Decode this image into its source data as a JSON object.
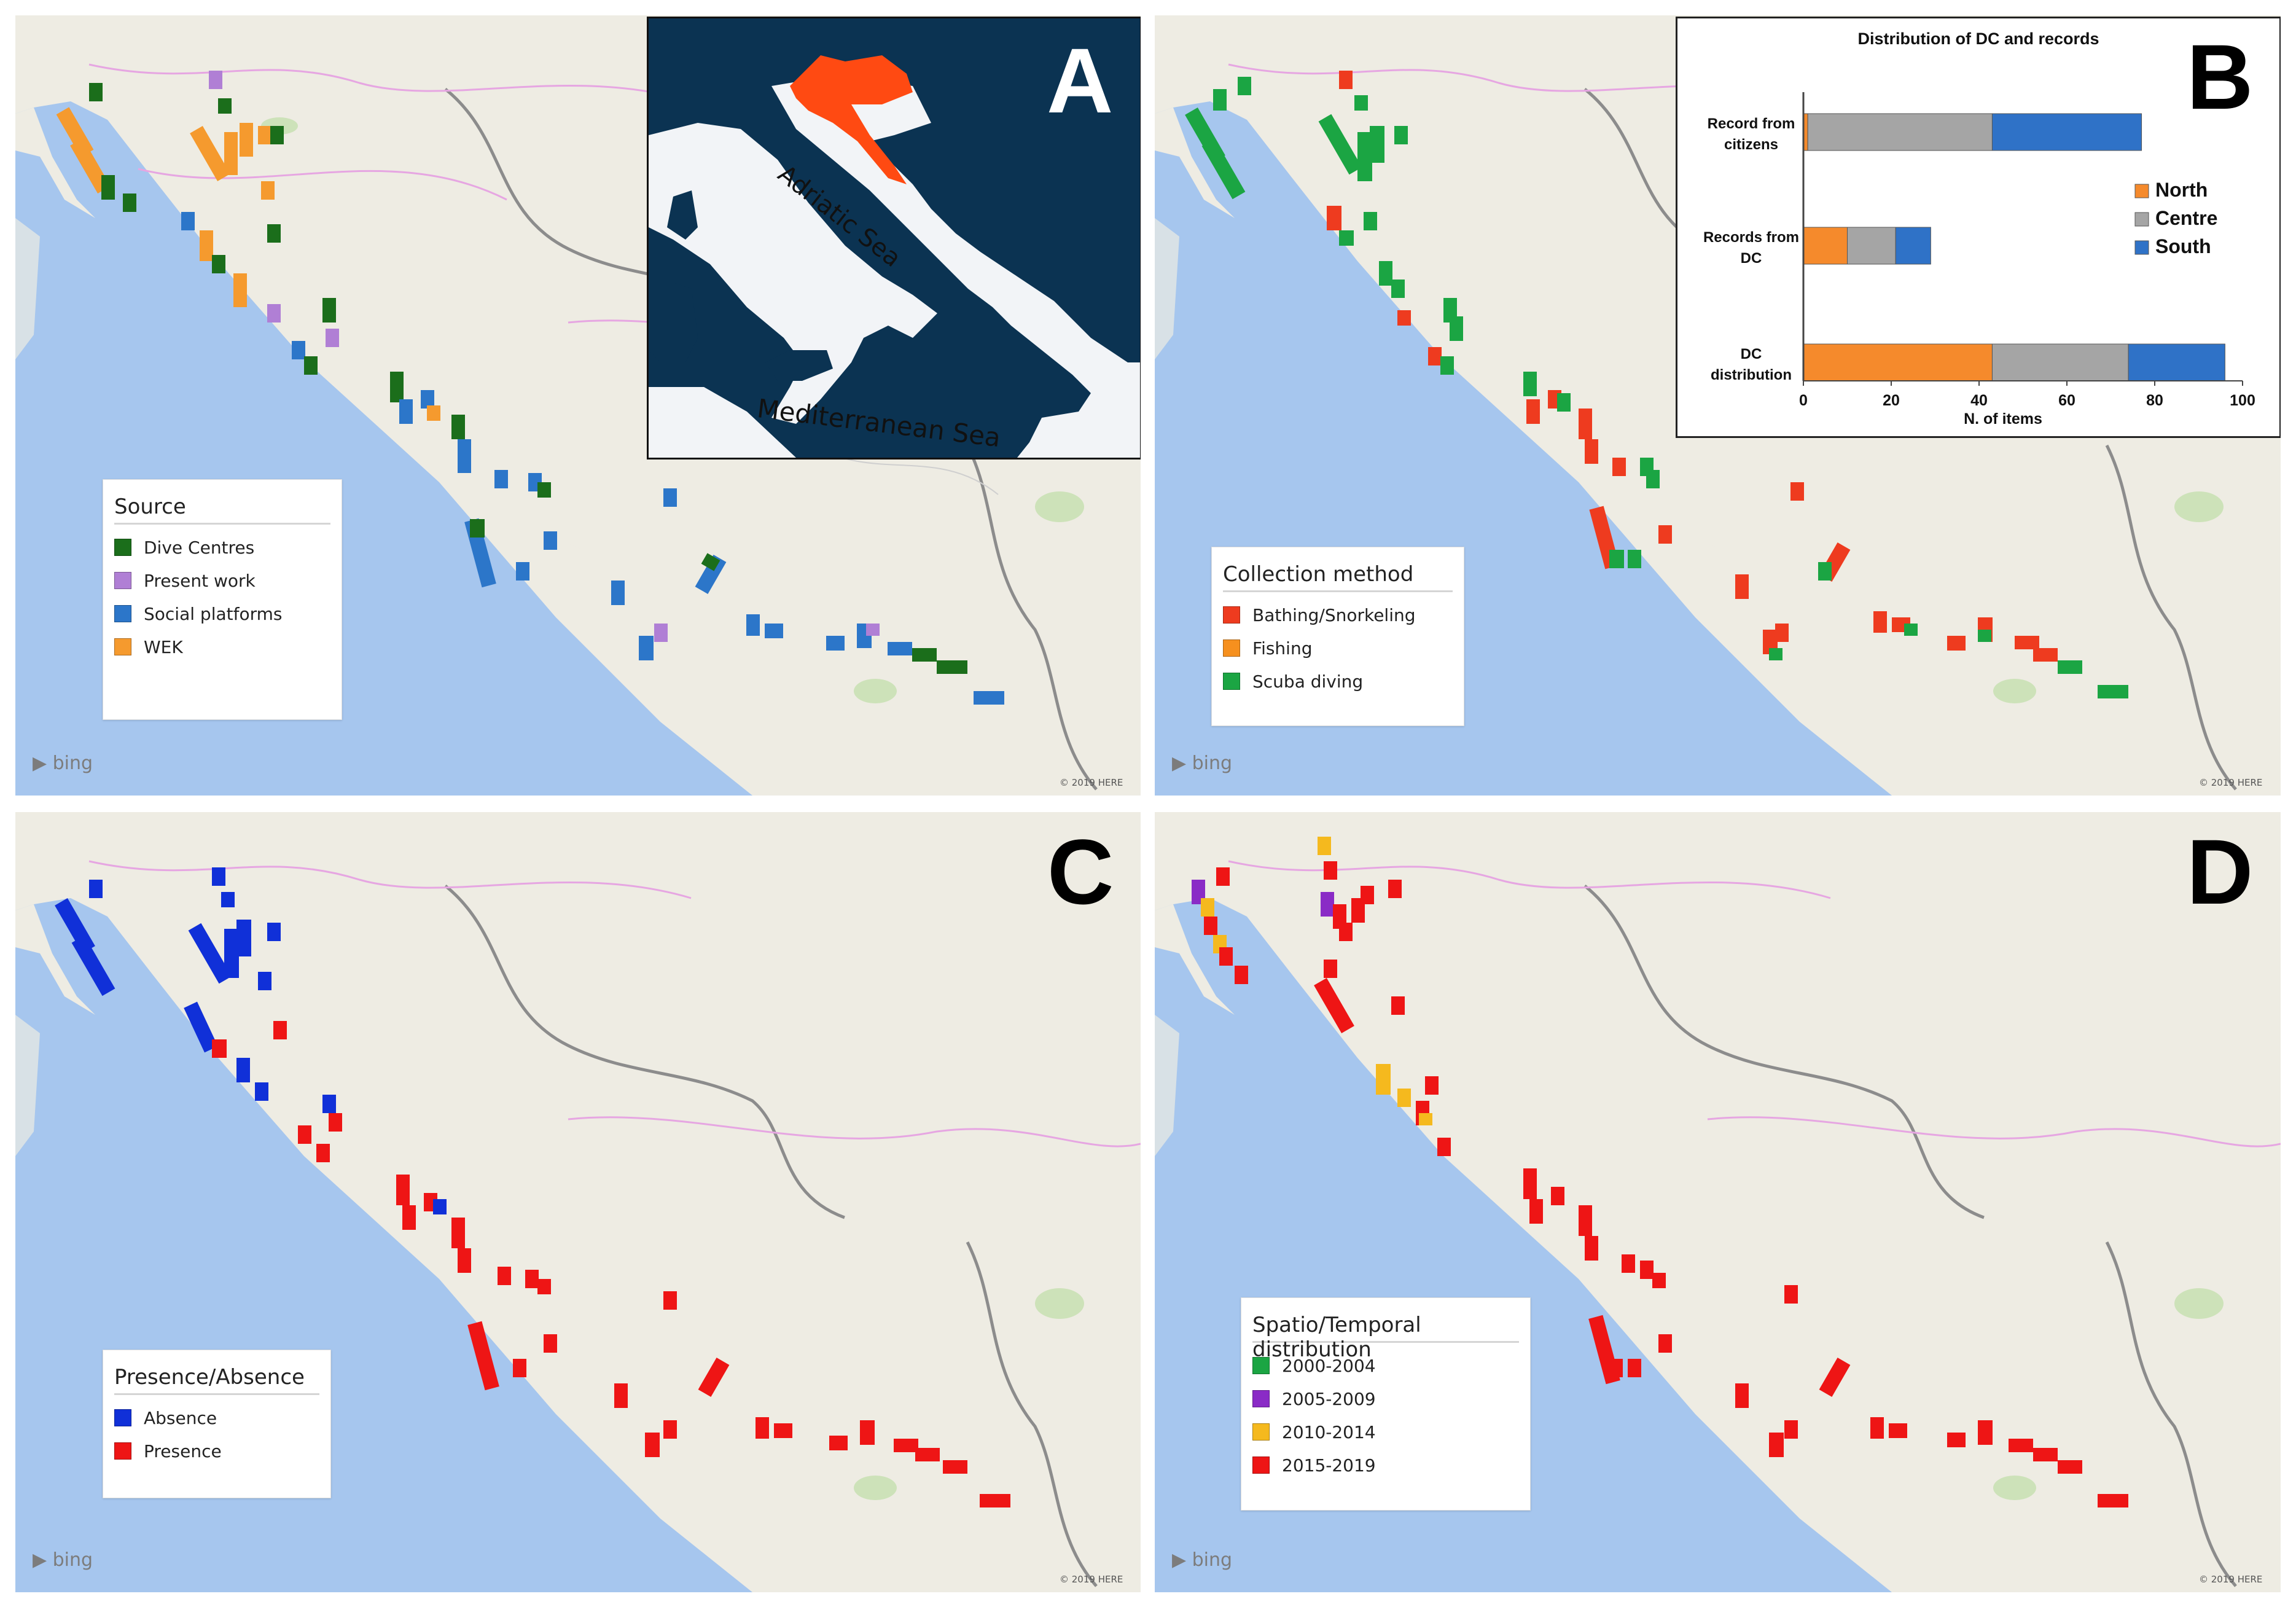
{
  "colors": {
    "sea": "#a6c6ee",
    "land": "#eeece3",
    "inset_sea": "#0b3352",
    "inset_land": "#f2f4f7",
    "croatia": "#ff4a12",
    "north": "#f58a2c",
    "centre": "#a5a5a5",
    "south": "#2f72c7"
  },
  "panels": [
    {
      "letter": "A",
      "bing_label": "bing",
      "copyright": "© 2019 HERE",
      "legend": {
        "title": "Source",
        "items": [
          {
            "label": "Dive Centres",
            "color": "#1b6e1b"
          },
          {
            "label": "Present work",
            "color": "#b07fd5"
          },
          {
            "label": "Social platforms",
            "color": "#2c76c9"
          },
          {
            "label": "WEK",
            "color": "#f59a2e"
          }
        ]
      },
      "inset": {
        "label_adriatic": "Adriatic Sea",
        "label_mediterranean": "Mediterranean Sea"
      }
    },
    {
      "letter": "B",
      "bing_label": "bing",
      "copyright": "© 2019 HERE",
      "legend": {
        "title": "Collection method",
        "items": [
          {
            "label": "Bathing/Snorkeling",
            "color": "#ee3b1f"
          },
          {
            "label": "Fishing",
            "color": "#f6901e"
          },
          {
            "label": "Scuba diving",
            "color": "#1ba543"
          }
        ]
      }
    },
    {
      "letter": "C",
      "bing_label": "bing",
      "copyright": "© 2019 HERE",
      "legend": {
        "title": "Presence/Absence",
        "items": [
          {
            "label": "Absence",
            "color": "#1030d8"
          },
          {
            "label": "Presence",
            "color": "#ee1515"
          }
        ]
      }
    },
    {
      "letter": "D",
      "bing_label": "bing",
      "copyright": "© 2019 HERE",
      "legend": {
        "title": "Spatio/Temporal distribution",
        "items": [
          {
            "label": "2000-2004",
            "color": "#1ba543"
          },
          {
            "label": "2005-2009",
            "color": "#8a2bc6"
          },
          {
            "label": "2010-2014",
            "color": "#f5b91e"
          },
          {
            "label": "2015-2019",
            "color": "#ee1515"
          }
        ]
      }
    }
  ],
  "chart_data": {
    "type": "bar",
    "orientation": "horizontal",
    "stacked": true,
    "title": "Distribution of DC and records",
    "xlabel": "N. of items",
    "ylabel": "",
    "xlim": [
      0,
      100
    ],
    "xticks": [
      0,
      20,
      40,
      60,
      80,
      100
    ],
    "grid": false,
    "legend_position": "right",
    "categories": [
      "Record from citizens",
      "Records from DC",
      "DC distribution"
    ],
    "series": [
      {
        "name": "North",
        "color": "#f58a2c",
        "values": [
          1,
          10,
          43
        ]
      },
      {
        "name": "Centre",
        "color": "#a5a5a5",
        "values": [
          42,
          11,
          31
        ]
      },
      {
        "name": "South",
        "color": "#2f72c7",
        "values": [
          34,
          8,
          22
        ]
      }
    ]
  }
}
